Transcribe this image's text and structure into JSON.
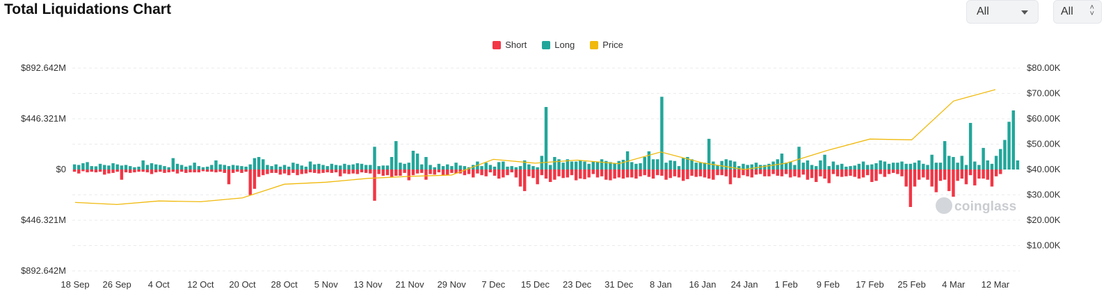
{
  "header": {
    "title": "Total Liquidations Chart",
    "range_select": "All",
    "coin_select": "All",
    "icons": {
      "range": "chevron-down-icon",
      "coin": "up-down-chevron-icon"
    }
  },
  "watermark": "coinglass",
  "chart_data": {
    "type": "bar",
    "legend": [
      {
        "name": "Short",
        "color": "#f23645"
      },
      {
        "name": "Long",
        "color": "#22a69a"
      },
      {
        "name": "Price",
        "color": "#f0b90b"
      }
    ],
    "legend_position": "top-center",
    "left_axis": {
      "ticks": [
        "$892.642M",
        "$446.321M",
        "$0",
        "$446.321M",
        "$892.642M"
      ],
      "range": [
        -892.642,
        892.642
      ],
      "unit": "M USD"
    },
    "right_axis": {
      "ticks": [
        "$80.00K",
        "$70.00K",
        "$60.00K",
        "$50.00K",
        "$40.00K",
        "$30.00K",
        "$20.00K",
        "$10.00K"
      ],
      "range": [
        0,
        80000
      ],
      "unit": "USD"
    },
    "x_ticks": [
      "18 Sep",
      "26 Sep",
      "4 Oct",
      "12 Oct",
      "20 Oct",
      "28 Oct",
      "5 Nov",
      "13 Nov",
      "21 Nov",
      "29 Nov",
      "7 Dec",
      "15 Dec",
      "23 Dec",
      "31 Dec",
      "8 Jan",
      "16 Jan",
      "24 Jan",
      "1 Feb",
      "9 Feb",
      "17 Feb",
      "25 Feb",
      "4 Mar",
      "12 Mar"
    ],
    "grid": true,
    "series": [
      {
        "name": "Long",
        "values": [
          45,
          40,
          55,
          65,
          30,
          28,
          50,
          40,
          35,
          55,
          45,
          35,
          40,
          30,
          20,
          25,
          80,
          40,
          55,
          45,
          40,
          30,
          20,
          100,
          50,
          40,
          25,
          35,
          60,
          30,
          20,
          25,
          40,
          80,
          45,
          40,
          30,
          40,
          35,
          30,
          25,
          45,
          100,
          110,
          90,
          40,
          30,
          45,
          25,
          40,
          25,
          60,
          50,
          35,
          25,
          70,
          45,
          50,
          40,
          30,
          50,
          40,
          35,
          50,
          40,
          45,
          55,
          50,
          40,
          40,
          200,
          30,
          35,
          35,
          110,
          250,
          60,
          50,
          60,
          165,
          140,
          45,
          110,
          40,
          20,
          50,
          30,
          45,
          30,
          60,
          35,
          30,
          20,
          40,
          70,
          30,
          60,
          40,
          25,
          65,
          70,
          25,
          30,
          20,
          30,
          80,
          45,
          30,
          20,
          120,
          550,
          40,
          110,
          90,
          60,
          90,
          70,
          70,
          80,
          70,
          50,
          70,
          70,
          90,
          75,
          65,
          55,
          75,
          85,
          160,
          65,
          50,
          55,
          110,
          160,
          90,
          90,
          640,
          60,
          80,
          75,
          30,
          100,
          110,
          90,
          60,
          60,
          60,
          270,
          70,
          35,
          75,
          90,
          80,
          70,
          30,
          50,
          40,
          45,
          60,
          40,
          40,
          50,
          70,
          90,
          140,
          60,
          70,
          40,
          200,
          60,
          80,
          40,
          30,
          80,
          130,
          30,
          70,
          40,
          50,
          25,
          30,
          35,
          50,
          70,
          40,
          45,
          55,
          80,
          70,
          50,
          60,
          60,
          70,
          50,
          50,
          60,
          80,
          50,
          40,
          130,
          60,
          60,
          250,
          120,
          110,
          60,
          120,
          40,
          410,
          70,
          40,
          190,
          80,
          50,
          120,
          180,
          260,
          420,
          520,
          80
        ],
        "color": "#22a69a"
      },
      {
        "name": "Short",
        "values": [
          20,
          35,
          15,
          25,
          20,
          25,
          20,
          45,
          35,
          30,
          20,
          90,
          25,
          30,
          25,
          20,
          20,
          25,
          40,
          25,
          20,
          30,
          25,
          20,
          35,
          20,
          30,
          25,
          25,
          25,
          15,
          20,
          20,
          25,
          20,
          30,
          130,
          30,
          20,
          30,
          20,
          225,
          170,
          65,
          50,
          40,
          30,
          30,
          45,
          35,
          50,
          30,
          50,
          40,
          35,
          25,
          30,
          35,
          30,
          25,
          30,
          25,
          60,
          35,
          40,
          35,
          40,
          25,
          30,
          35,
          275,
          40,
          55,
          50,
          65,
          55,
          55,
          30,
          95,
          50,
          35,
          30,
          90,
          40,
          45,
          25,
          50,
          50,
          30,
          35,
          35,
          50,
          40,
          70,
          35,
          50,
          60,
          25,
          55,
          80,
          70,
          50,
          25,
          70,
          150,
          190,
          60,
          75,
          130,
          50,
          80,
          110,
          90,
          60,
          75,
          70,
          50,
          95,
          80,
          85,
          70,
          40,
          70,
          60,
          90,
          95,
          80,
          70,
          80,
          70,
          70,
          80,
          60,
          50,
          65,
          80,
          50,
          55,
          90,
          75,
          60,
          70,
          100,
          85,
          55,
          65,
          60,
          70,
          80,
          90,
          50,
          50,
          60,
          130,
          70,
          75,
          50,
          60,
          70,
          45,
          40,
          60,
          60,
          40,
          55,
          60,
          40,
          70,
          60,
          70,
          45,
          90,
          75,
          110,
          60,
          80,
          120,
          40,
          60,
          65,
          60,
          55,
          65,
          80,
          70,
          50,
          110,
          100,
          40,
          65,
          40,
          30,
          40,
          60,
          150,
          330,
          150,
          90,
          70,
          90,
          150,
          200,
          100,
          90,
          190,
          240,
          100,
          80,
          130,
          50,
          140,
          80,
          80,
          90,
          150,
          60,
          40
        ],
        "color": "#f23645"
      },
      {
        "name": "Price",
        "x": [
          "18 Sep",
          "26 Sep",
          "4 Oct",
          "12 Oct",
          "20 Oct",
          "28 Oct",
          "5 Nov",
          "13 Nov",
          "21 Nov",
          "29 Nov",
          "7 Dec",
          "15 Dec",
          "23 Dec",
          "31 Dec",
          "8 Jan",
          "16 Jan",
          "24 Jan",
          "1 Feb",
          "9 Feb",
          "17 Feb",
          "25 Feb",
          "4 Mar",
          "12 Mar"
        ],
        "values": [
          27000,
          26200,
          27600,
          27300,
          28800,
          34200,
          35000,
          36500,
          37300,
          37800,
          44000,
          42500,
          43700,
          42300,
          46900,
          42600,
          40000,
          42500,
          47600,
          52000,
          51700,
          67000,
          71500
        ],
        "color": "#f0b90b"
      }
    ]
  }
}
